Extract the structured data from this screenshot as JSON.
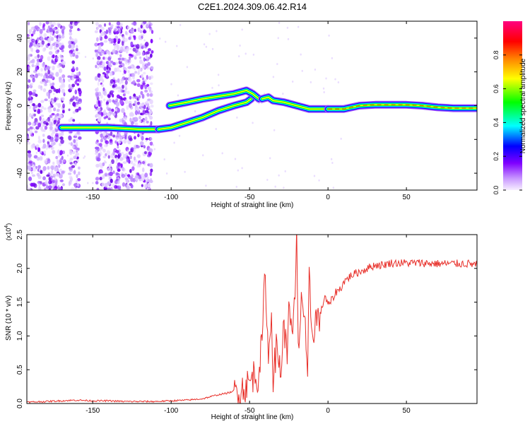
{
  "title": "C2E1.2024.309.06.42.R14",
  "chart_data": [
    {
      "type": "heatmap",
      "xlabel": "Height of straight line (km)",
      "ylabel": "Frequency (Hz)",
      "xlim": [
        -192,
        95
      ],
      "ylim": [
        -50,
        50
      ],
      "xticks": [
        -150,
        -100,
        -50,
        0,
        50
      ],
      "yticks": [
        -40,
        -20,
        0,
        20,
        40
      ],
      "colorbar": {
        "label": "Normalized spectral amplitude",
        "range": [
          0,
          1
        ],
        "ticks": [
          0.0,
          0.2,
          0.4,
          0.6,
          0.8
        ],
        "colormap": [
          "#f2e6ff",
          "#7f00ff",
          "#0000ff",
          "#00ffff",
          "#00ff00",
          "#ffff00",
          "#ff8000",
          "#ff0000",
          "#ff00a0"
        ]
      },
      "noise_regions": [
        [
          -192,
          -168
        ],
        [
          -165,
          -158
        ],
        [
          -148,
          -112
        ]
      ],
      "tracks": [
        {
          "x": [
            -170,
            -150,
            -140,
            -120,
            -108
          ],
          "y": [
            -13,
            -13,
            -13,
            -14,
            -14
          ]
        },
        {
          "x": [
            -108,
            -100,
            -90,
            -80,
            -70,
            -60,
            -52,
            -49
          ],
          "y": [
            -14,
            -13,
            -10,
            -7,
            -3,
            0,
            2,
            4
          ]
        },
        {
          "x": [
            -101,
            -90,
            -80,
            -70,
            -60,
            -52,
            -48,
            -44
          ],
          "y": [
            0,
            2,
            4,
            5.5,
            7,
            9,
            7,
            4
          ]
        },
        {
          "x": [
            -42,
            -38,
            -35,
            -28,
            -20,
            -12,
            -8,
            0
          ],
          "y": [
            4,
            5,
            3,
            2,
            0,
            -2,
            -2,
            -2
          ]
        },
        {
          "x": [
            0,
            10,
            20,
            30,
            40,
            50,
            60,
            70,
            80,
            95
          ],
          "y": [
            -2,
            -2,
            0,
            0.5,
            0.5,
            0.5,
            0,
            -1,
            -1.5,
            -1.5
          ]
        }
      ]
    },
    {
      "type": "line",
      "xlabel": "Height of straight line (km)",
      "ylabel": "SNR (10 * v/v)",
      "yscale_label": "(x10",
      "yscale_exp": "4",
      "xlim": [
        -192,
        95
      ],
      "ylim": [
        0,
        2.5
      ],
      "xticks": [
        -150,
        -100,
        -50,
        0,
        50
      ],
      "yticks": [
        0.0,
        0.5,
        1.0,
        1.5,
        2.0,
        2.5
      ],
      "series": [
        {
          "color": "#e8302a",
          "x": [
            -192,
            -180,
            -170,
            -160,
            -150,
            -140,
            -130,
            -120,
            -110,
            -100,
            -90,
            -80,
            -75,
            -70,
            -65,
            -60,
            -55,
            -50,
            -47,
            -45,
            -42,
            -40,
            -38,
            -36,
            -35,
            -33,
            -30,
            -28,
            -26,
            -25,
            -23,
            -21,
            -20,
            -19,
            -17,
            -15,
            -13,
            -12,
            -10,
            -8,
            -5,
            -2,
            0,
            3,
            5,
            8,
            10,
            15,
            20,
            25,
            30,
            35,
            40,
            45,
            50,
            60,
            70,
            80,
            90,
            95
          ],
          "y": [
            0.02,
            0.03,
            0.04,
            0.05,
            0.04,
            0.04,
            0.03,
            0.03,
            0.03,
            0.04,
            0.05,
            0.07,
            0.1,
            0.13,
            0.15,
            0.18,
            0.22,
            0.3,
            0.45,
            0.35,
            0.9,
            2.0,
            0.6,
            1.4,
            0.4,
            0.8,
            0.5,
            1.2,
            0.6,
            1.7,
            0.9,
            1.5,
            2.5,
            0.7,
            1.6,
            1.3,
            0.2,
            1.85,
            1.0,
            1.25,
            1.3,
            1.6,
            1.45,
            1.55,
            1.65,
            1.7,
            1.8,
            1.9,
            1.95,
            2.0,
            2.05,
            2.05,
            2.08,
            2.08,
            2.08,
            2.08,
            2.07,
            2.07,
            2.07,
            2.05
          ]
        }
      ]
    }
  ]
}
